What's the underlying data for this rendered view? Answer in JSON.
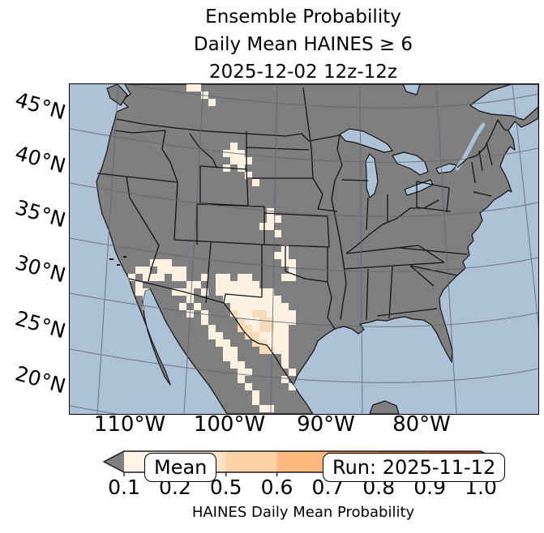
{
  "title": {
    "line1": "Ensemble Probability",
    "line2": "Daily Mean HAINES ≥ 6",
    "line3": "2025-12-02 12z-12z"
  },
  "map": {
    "lat_labels": [
      "45°N",
      "40°N",
      "35°N",
      "30°N",
      "25°N",
      "20°N"
    ],
    "lon_labels": [
      "110°W",
      "100°W",
      "90°W",
      "80°W"
    ],
    "mean_label": "Mean",
    "run_label": "Run: 2025-11-12",
    "colors": {
      "ocean": "#aec2d7",
      "land": "#7f7f7f",
      "border": "#141414",
      "gridline": "#5c6876",
      "cell_light": "#fdf1e2",
      "cell_medium": "#f8dcba"
    },
    "overlay_cells": {
      "cell_size": 9,
      "light": [
        [
          16,
          0
        ],
        [
          17,
          0
        ],
        [
          18,
          1
        ],
        [
          19,
          2
        ],
        [
          22,
          8
        ],
        [
          21,
          9
        ],
        [
          22,
          9
        ],
        [
          23,
          9
        ],
        [
          22,
          10
        ],
        [
          23,
          10
        ],
        [
          24,
          10
        ],
        [
          21,
          11
        ],
        [
          23,
          11
        ],
        [
          24,
          12
        ],
        [
          25,
          13
        ],
        [
          27,
          17
        ],
        [
          27,
          18
        ],
        [
          28,
          18
        ],
        [
          26,
          19
        ],
        [
          27,
          19
        ],
        [
          28,
          20
        ],
        [
          29,
          22
        ],
        [
          28,
          23
        ],
        [
          29,
          23
        ],
        [
          29,
          24
        ],
        [
          30,
          24
        ],
        [
          30,
          25
        ],
        [
          29,
          26
        ],
        [
          30,
          26
        ],
        [
          8,
          26
        ],
        [
          9,
          25
        ],
        [
          10,
          25
        ],
        [
          11,
          24
        ],
        [
          12,
          24
        ],
        [
          13,
          24
        ],
        [
          12,
          25
        ],
        [
          13,
          25
        ],
        [
          14,
          25
        ],
        [
          15,
          25
        ],
        [
          10,
          26
        ],
        [
          11,
          26
        ],
        [
          12,
          26
        ],
        [
          14,
          26
        ],
        [
          15,
          26
        ],
        [
          18,
          26
        ],
        [
          16,
          27
        ],
        [
          17,
          27
        ],
        [
          9,
          27
        ],
        [
          10,
          28
        ],
        [
          16,
          28
        ],
        [
          18,
          28
        ],
        [
          14,
          28
        ],
        [
          15,
          28
        ],
        [
          16,
          29
        ],
        [
          15,
          30
        ],
        [
          16,
          31
        ],
        [
          20,
          26
        ],
        [
          21,
          26
        ],
        [
          23,
          26
        ],
        [
          24,
          26
        ],
        [
          20,
          27
        ],
        [
          21,
          27
        ],
        [
          22,
          27
        ],
        [
          23,
          27
        ],
        [
          24,
          27
        ],
        [
          25,
          27
        ],
        [
          20,
          28
        ],
        [
          21,
          28
        ],
        [
          22,
          28
        ],
        [
          23,
          28
        ],
        [
          24,
          28
        ],
        [
          25,
          28
        ],
        [
          26,
          28
        ],
        [
          27,
          28
        ],
        [
          21,
          29
        ],
        [
          22,
          29
        ],
        [
          23,
          29
        ],
        [
          24,
          29
        ],
        [
          25,
          29
        ],
        [
          26,
          29
        ],
        [
          27,
          29
        ],
        [
          28,
          29
        ],
        [
          22,
          30
        ],
        [
          23,
          30
        ],
        [
          24,
          30
        ],
        [
          25,
          30
        ],
        [
          26,
          30
        ],
        [
          27,
          30
        ],
        [
          28,
          30
        ],
        [
          29,
          30
        ],
        [
          23,
          31
        ],
        [
          24,
          31
        ],
        [
          27,
          31
        ],
        [
          28,
          31
        ],
        [
          29,
          31
        ],
        [
          30,
          31
        ],
        [
          24,
          32
        ],
        [
          25,
          32
        ],
        [
          28,
          32
        ],
        [
          29,
          32
        ],
        [
          30,
          32
        ],
        [
          25,
          33
        ],
        [
          28,
          33
        ],
        [
          29,
          33
        ],
        [
          26,
          34
        ],
        [
          27,
          34
        ],
        [
          28,
          34
        ],
        [
          29,
          34
        ],
        [
          27,
          35
        ],
        [
          28,
          35
        ],
        [
          29,
          35
        ],
        [
          28,
          36
        ],
        [
          29,
          36
        ],
        [
          29,
          37
        ],
        [
          29,
          38
        ],
        [
          30,
          39
        ],
        [
          29,
          40
        ],
        [
          30,
          41
        ],
        [
          9,
          28
        ],
        [
          10,
          29
        ],
        [
          10,
          30
        ],
        [
          11,
          31
        ],
        [
          11,
          32
        ],
        [
          12,
          33
        ],
        [
          12,
          34
        ],
        [
          13,
          36
        ],
        [
          13,
          38
        ],
        [
          14,
          40
        ],
        [
          17,
          30
        ],
        [
          18,
          31
        ],
        [
          18,
          32
        ],
        [
          19,
          33
        ],
        [
          19,
          34
        ],
        [
          20,
          34
        ],
        [
          20,
          35
        ],
        [
          21,
          35
        ],
        [
          21,
          36
        ],
        [
          22,
          36
        ],
        [
          21,
          37
        ],
        [
          22,
          37
        ],
        [
          22,
          38
        ],
        [
          23,
          38
        ],
        [
          23,
          39
        ],
        [
          24,
          39
        ],
        [
          23,
          40
        ],
        [
          24,
          41
        ],
        [
          25,
          42
        ],
        [
          25,
          43
        ],
        [
          26,
          44
        ],
        [
          27,
          44
        ]
      ],
      "medium": [
        [
          22,
          31
        ],
        [
          25,
          31
        ],
        [
          26,
          31
        ],
        [
          23,
          32
        ],
        [
          26,
          32
        ],
        [
          27,
          32
        ],
        [
          23,
          33
        ],
        [
          24,
          33
        ],
        [
          26,
          33
        ],
        [
          27,
          33
        ],
        [
          24,
          34
        ],
        [
          25,
          34
        ],
        [
          25,
          35
        ],
        [
          26,
          35
        ],
        [
          26,
          36
        ],
        [
          27,
          36
        ]
      ]
    }
  },
  "colorbar": {
    "label": "HAINES Daily Mean Probability",
    "ticks": [
      "0.1",
      "0.2",
      "0.5",
      "0.6",
      "0.7",
      "0.8",
      "0.9",
      "1.0"
    ],
    "segment_colors": [
      "#fdf3e6",
      "#fde3c5",
      "#fdd2a6",
      "#fdb97e",
      "#fd9040",
      "#f2700d",
      "#de5104"
    ],
    "under_arrow_color": "#7f7f7f",
    "over_arrow_color": "#953103"
  }
}
